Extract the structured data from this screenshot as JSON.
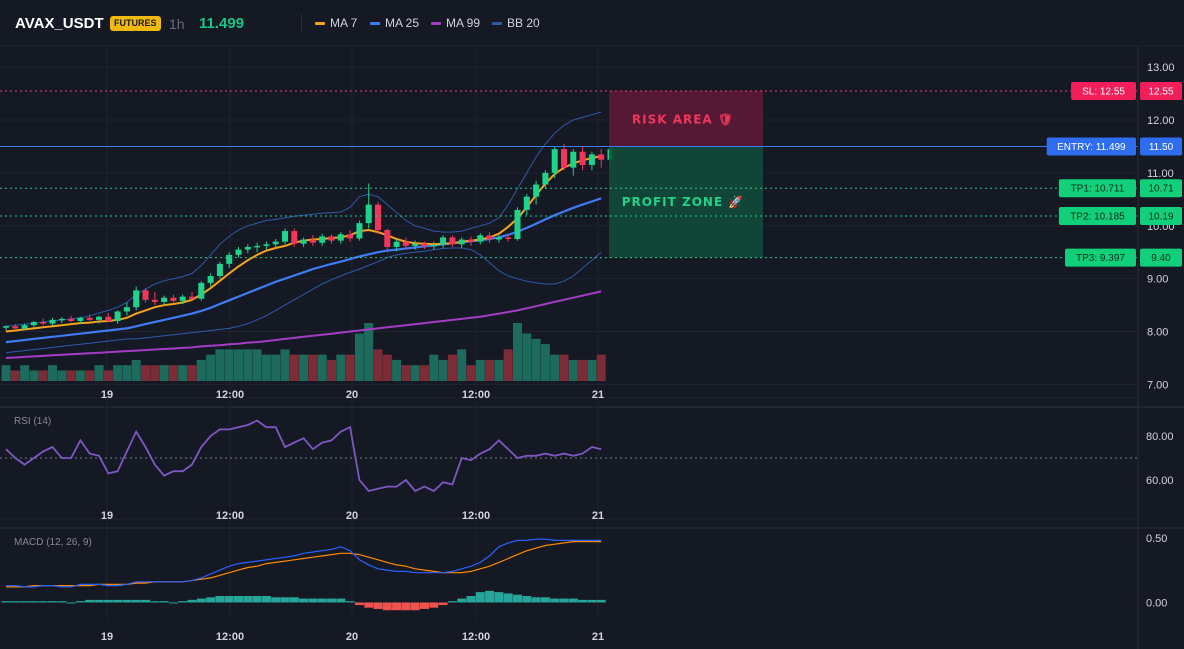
{
  "header": {
    "symbol": "AVAX_USDT",
    "badge": "FUTURES",
    "timeframe": "1h",
    "last_price": "11.499",
    "legend": [
      {
        "label": "MA 7",
        "color": "#f7a21b"
      },
      {
        "label": "MA 25",
        "color": "#3d7cf5"
      },
      {
        "label": "MA 99",
        "color": "#a43cc4"
      },
      {
        "label": "BB 20",
        "color": "#2e5aa8"
      }
    ]
  },
  "colors": {
    "up": "#1fd38a",
    "down": "#f2365b",
    "vol_up": "#1c6b5c",
    "vol_down": "#7d2b37",
    "macd_hist_up": "#26a69a",
    "macd_hist_down": "#ef5350",
    "rsi": "#7e57c2",
    "macd_line": "#2962ff",
    "signal_line": "#ff8a00",
    "grid": "#1f2330"
  },
  "price_axis": {
    "ticks": [
      "13.00",
      "12.00",
      "11.00",
      "10.00",
      "9.00",
      "8.00",
      "7.00"
    ],
    "min": 6.8,
    "max": 13.4
  },
  "time_axis": {
    "labels": [
      "19",
      "12:00",
      "20",
      "12:00",
      "21"
    ]
  },
  "levels": {
    "sl": {
      "label": "SL: 12.55",
      "value_label": "12.55",
      "value": 12.55
    },
    "entry": {
      "label": "ENTRY: 11.499",
      "value_label": "11.50",
      "value": 11.5
    },
    "tp1": {
      "label": "TP1: 10.711",
      "value_label": "10.71",
      "value": 10.711
    },
    "tp2": {
      "label": "TP2: 10.185",
      "value_label": "10.19",
      "value": 10.185
    },
    "tp3": {
      "label": "TP3: 9.397",
      "value_label": "9.40",
      "value": 9.397
    }
  },
  "zones": {
    "risk_label": "RISK AREA 🛡",
    "profit_label": "PROFIT ZONE 🚀"
  },
  "rsi": {
    "title": "RSI (14)",
    "ticks": [
      "80.00",
      "60.00"
    ],
    "level": 70,
    "values": [
      74,
      70,
      67,
      70,
      73,
      75,
      70,
      70,
      78,
      72,
      71,
      63,
      64,
      73,
      82,
      75,
      67,
      62,
      64,
      64,
      67,
      75,
      80,
      83,
      83,
      84,
      85,
      87,
      84,
      84,
      75,
      77,
      79,
      74,
      77,
      78,
      82,
      84,
      60,
      55,
      56,
      57,
      57,
      60,
      55,
      57,
      55,
      59,
      58,
      70,
      69,
      72,
      74,
      78,
      74,
      70,
      71,
      71,
      72,
      71,
      72,
      71,
      72,
      75,
      74
    ]
  },
  "macd": {
    "title": "MACD (12, 26, 9)",
    "ticks": [
      "0.50",
      "0.00"
    ],
    "macd_line": [
      0.13,
      0.13,
      0.12,
      0.12,
      0.13,
      0.13,
      0.12,
      0.12,
      0.14,
      0.14,
      0.14,
      0.13,
      0.13,
      0.14,
      0.16,
      0.16,
      0.16,
      0.16,
      0.16,
      0.16,
      0.17,
      0.19,
      0.22,
      0.25,
      0.28,
      0.3,
      0.31,
      0.32,
      0.33,
      0.34,
      0.35,
      0.36,
      0.38,
      0.39,
      0.4,
      0.41,
      0.43,
      0.4,
      0.33,
      0.29,
      0.26,
      0.25,
      0.24,
      0.24,
      0.23,
      0.23,
      0.23,
      0.23,
      0.24,
      0.26,
      0.28,
      0.31,
      0.36,
      0.43,
      0.46,
      0.48,
      0.48,
      0.49,
      0.49,
      0.48,
      0.48,
      0.48,
      0.48,
      0.48,
      0.48
    ],
    "signal_line": [
      0.12,
      0.12,
      0.12,
      0.13,
      0.13,
      0.13,
      0.13,
      0.13,
      0.13,
      0.13,
      0.14,
      0.14,
      0.14,
      0.14,
      0.15,
      0.15,
      0.16,
      0.16,
      0.16,
      0.16,
      0.17,
      0.18,
      0.19,
      0.21,
      0.23,
      0.25,
      0.27,
      0.28,
      0.3,
      0.31,
      0.32,
      0.33,
      0.34,
      0.35,
      0.36,
      0.37,
      0.38,
      0.38,
      0.37,
      0.35,
      0.33,
      0.31,
      0.29,
      0.28,
      0.26,
      0.25,
      0.24,
      0.23,
      0.23,
      0.23,
      0.24,
      0.26,
      0.28,
      0.31,
      0.34,
      0.37,
      0.4,
      0.42,
      0.44,
      0.45,
      0.46,
      0.47,
      0.47,
      0.47,
      0.47
    ],
    "histogram": [
      0.01,
      0.01,
      0.01,
      0.01,
      0.01,
      0.01,
      0.01,
      0.0,
      0.01,
      0.02,
      0.02,
      0.02,
      0.02,
      0.02,
      0.02,
      0.02,
      0.01,
      0.01,
      0.0,
      0.01,
      0.02,
      0.03,
      0.04,
      0.05,
      0.05,
      0.05,
      0.05,
      0.05,
      0.05,
      0.04,
      0.04,
      0.04,
      0.03,
      0.03,
      0.03,
      0.03,
      0.03,
      0.01,
      -0.02,
      -0.04,
      -0.05,
      -0.06,
      -0.06,
      -0.06,
      -0.06,
      -0.05,
      -0.04,
      -0.02,
      0.01,
      0.03,
      0.05,
      0.08,
      0.09,
      0.08,
      0.07,
      0.06,
      0.05,
      0.04,
      0.04,
      0.03,
      0.03,
      0.03,
      0.02,
      0.02,
      0.02
    ]
  },
  "chart_data": {
    "type": "candlestick",
    "symbol": "AVAX_USDT",
    "interval": "1h",
    "candles": [
      {
        "o": 8.08,
        "h": 8.12,
        "l": 8.02,
        "c": 8.1
      },
      {
        "o": 8.1,
        "h": 8.14,
        "l": 8.05,
        "c": 8.06
      },
      {
        "o": 8.06,
        "h": 8.15,
        "l": 8.03,
        "c": 8.12
      },
      {
        "o": 8.12,
        "h": 8.2,
        "l": 8.08,
        "c": 8.18
      },
      {
        "o": 8.18,
        "h": 8.25,
        "l": 8.12,
        "c": 8.15
      },
      {
        "o": 8.15,
        "h": 8.26,
        "l": 8.12,
        "c": 8.22
      },
      {
        "o": 8.22,
        "h": 8.27,
        "l": 8.16,
        "c": 8.24
      },
      {
        "o": 8.24,
        "h": 8.3,
        "l": 8.18,
        "c": 8.2
      },
      {
        "o": 8.2,
        "h": 8.28,
        "l": 8.15,
        "c": 8.26
      },
      {
        "o": 8.26,
        "h": 8.32,
        "l": 8.2,
        "c": 8.22
      },
      {
        "o": 8.22,
        "h": 8.3,
        "l": 8.15,
        "c": 8.28
      },
      {
        "o": 8.28,
        "h": 8.35,
        "l": 8.18,
        "c": 8.2
      },
      {
        "o": 8.2,
        "h": 8.4,
        "l": 8.15,
        "c": 8.38
      },
      {
        "o": 8.38,
        "h": 8.55,
        "l": 8.3,
        "c": 8.46
      },
      {
        "o": 8.46,
        "h": 8.85,
        "l": 8.4,
        "c": 8.78
      },
      {
        "o": 8.78,
        "h": 8.82,
        "l": 8.55,
        "c": 8.6
      },
      {
        "o": 8.6,
        "h": 8.75,
        "l": 8.5,
        "c": 8.56
      },
      {
        "o": 8.56,
        "h": 8.68,
        "l": 8.5,
        "c": 8.64
      },
      {
        "o": 8.64,
        "h": 8.7,
        "l": 8.55,
        "c": 8.58
      },
      {
        "o": 8.58,
        "h": 8.7,
        "l": 8.52,
        "c": 8.66
      },
      {
        "o": 8.66,
        "h": 8.75,
        "l": 8.6,
        "c": 8.62
      },
      {
        "o": 8.62,
        "h": 8.95,
        "l": 8.58,
        "c": 8.92
      },
      {
        "o": 8.92,
        "h": 9.1,
        "l": 8.85,
        "c": 9.05
      },
      {
        "o": 9.05,
        "h": 9.32,
        "l": 9.0,
        "c": 9.28
      },
      {
        "o": 9.28,
        "h": 9.5,
        "l": 9.2,
        "c": 9.45
      },
      {
        "o": 9.45,
        "h": 9.6,
        "l": 9.4,
        "c": 9.55
      },
      {
        "o": 9.55,
        "h": 9.65,
        "l": 9.48,
        "c": 9.6
      },
      {
        "o": 9.6,
        "h": 9.68,
        "l": 9.5,
        "c": 9.62
      },
      {
        "o": 9.62,
        "h": 9.7,
        "l": 9.55,
        "c": 9.65
      },
      {
        "o": 9.65,
        "h": 9.75,
        "l": 9.6,
        "c": 9.7
      },
      {
        "o": 9.7,
        "h": 9.95,
        "l": 9.65,
        "c": 9.9
      },
      {
        "o": 9.9,
        "h": 9.95,
        "l": 9.6,
        "c": 9.66
      },
      {
        "o": 9.66,
        "h": 9.78,
        "l": 9.6,
        "c": 9.74
      },
      {
        "o": 9.74,
        "h": 9.82,
        "l": 9.62,
        "c": 9.68
      },
      {
        "o": 9.68,
        "h": 9.85,
        "l": 9.62,
        "c": 9.8
      },
      {
        "o": 9.8,
        "h": 9.84,
        "l": 9.66,
        "c": 9.72
      },
      {
        "o": 9.72,
        "h": 9.88,
        "l": 9.66,
        "c": 9.84
      },
      {
        "o": 9.84,
        "h": 9.92,
        "l": 9.7,
        "c": 9.76
      },
      {
        "o": 9.76,
        "h": 10.1,
        "l": 9.72,
        "c": 10.05
      },
      {
        "o": 10.05,
        "h": 10.8,
        "l": 9.95,
        "c": 10.4
      },
      {
        "o": 10.4,
        "h": 10.45,
        "l": 9.85,
        "c": 9.92
      },
      {
        "o": 9.92,
        "h": 9.95,
        "l": 9.5,
        "c": 9.6
      },
      {
        "o": 9.6,
        "h": 9.75,
        "l": 9.52,
        "c": 9.7
      },
      {
        "o": 9.7,
        "h": 9.78,
        "l": 9.55,
        "c": 9.62
      },
      {
        "o": 9.62,
        "h": 9.72,
        "l": 9.55,
        "c": 9.66
      },
      {
        "o": 9.66,
        "h": 9.7,
        "l": 9.56,
        "c": 9.62
      },
      {
        "o": 9.62,
        "h": 9.7,
        "l": 9.55,
        "c": 9.64
      },
      {
        "o": 9.64,
        "h": 9.82,
        "l": 9.58,
        "c": 9.78
      },
      {
        "o": 9.78,
        "h": 9.82,
        "l": 9.6,
        "c": 9.65
      },
      {
        "o": 9.65,
        "h": 9.78,
        "l": 9.58,
        "c": 9.74
      },
      {
        "o": 9.74,
        "h": 9.8,
        "l": 9.62,
        "c": 9.7
      },
      {
        "o": 9.7,
        "h": 9.86,
        "l": 9.65,
        "c": 9.82
      },
      {
        "o": 9.82,
        "h": 9.88,
        "l": 9.68,
        "c": 9.74
      },
      {
        "o": 9.74,
        "h": 9.82,
        "l": 9.68,
        "c": 9.78
      },
      {
        "o": 9.78,
        "h": 9.84,
        "l": 9.7,
        "c": 9.75
      },
      {
        "o": 9.75,
        "h": 10.35,
        "l": 9.72,
        "c": 10.3
      },
      {
        "o": 10.3,
        "h": 10.6,
        "l": 10.2,
        "c": 10.55
      },
      {
        "o": 10.55,
        "h": 10.85,
        "l": 10.4,
        "c": 10.78
      },
      {
        "o": 10.78,
        "h": 11.05,
        "l": 10.7,
        "c": 11.0
      },
      {
        "o": 11.0,
        "h": 11.5,
        "l": 10.9,
        "c": 11.45
      },
      {
        "o": 11.45,
        "h": 11.55,
        "l": 11.05,
        "c": 11.1
      },
      {
        "o": 11.1,
        "h": 11.45,
        "l": 10.95,
        "c": 11.4
      },
      {
        "o": 11.4,
        "h": 11.5,
        "l": 11.05,
        "c": 11.15
      },
      {
        "o": 11.15,
        "h": 11.4,
        "l": 11.05,
        "c": 11.35
      },
      {
        "o": 11.35,
        "h": 11.45,
        "l": 11.1,
        "c": 11.25
      },
      {
        "o": 11.25,
        "h": 11.5,
        "l": 11.15,
        "c": 11.45
      }
    ],
    "volume": [
      3,
      2,
      3,
      2,
      2,
      3,
      2,
      2,
      2,
      2,
      3,
      2,
      3,
      3,
      4,
      3,
      3,
      3,
      3,
      3,
      3,
      4,
      5,
      6,
      6,
      6,
      6,
      6,
      5,
      5,
      6,
      5,
      5,
      5,
      5,
      4,
      5,
      5,
      9,
      11,
      6,
      5,
      4,
      3,
      3,
      3,
      5,
      4,
      5,
      6,
      3,
      4,
      4,
      4,
      6,
      11,
      9,
      8,
      7,
      5,
      5,
      4,
      4,
      4,
      5
    ],
    "ma7": [
      8.0,
      8.02,
      8.04,
      8.06,
      8.08,
      8.1,
      8.12,
      8.14,
      8.16,
      8.17,
      8.19,
      8.2,
      8.22,
      8.26,
      8.34,
      8.4,
      8.46,
      8.5,
      8.52,
      8.55,
      8.6,
      8.7,
      8.82,
      8.96,
      9.1,
      9.23,
      9.35,
      9.45,
      9.53,
      9.58,
      9.62,
      9.68,
      9.72,
      9.74,
      9.75,
      9.77,
      9.78,
      9.82,
      9.9,
      9.92,
      9.88,
      9.82,
      9.75,
      9.7,
      9.67,
      9.66,
      9.65,
      9.66,
      9.67,
      9.7,
      9.72,
      9.74,
      9.78,
      9.85,
      9.98,
      10.14,
      10.35,
      10.58,
      10.8,
      10.98,
      11.1,
      11.18,
      11.24,
      11.28,
      11.32
    ],
    "ma25": [
      7.8,
      7.82,
      7.84,
      7.86,
      7.88,
      7.9,
      7.92,
      7.94,
      7.96,
      7.98,
      8.0,
      8.02,
      8.04,
      8.06,
      8.1,
      8.14,
      8.18,
      8.22,
      8.26,
      8.3,
      8.34,
      8.39,
      8.45,
      8.52,
      8.59,
      8.66,
      8.73,
      8.8,
      8.87,
      8.94,
      9.0,
      9.06,
      9.12,
      9.18,
      9.23,
      9.28,
      9.32,
      9.37,
      9.42,
      9.46,
      9.5,
      9.53,
      9.55,
      9.57,
      9.59,
      9.61,
      9.63,
      9.65,
      9.67,
      9.69,
      9.71,
      9.73,
      9.75,
      9.78,
      9.83,
      9.89,
      9.96,
      10.04,
      10.12,
      10.2,
      10.27,
      10.34,
      10.4,
      10.46,
      10.52
    ],
    "ma99": [
      7.5,
      7.51,
      7.52,
      7.53,
      7.54,
      7.55,
      7.56,
      7.57,
      7.58,
      7.59,
      7.6,
      7.61,
      7.62,
      7.63,
      7.64,
      7.65,
      7.66,
      7.67,
      7.68,
      7.69,
      7.7,
      7.72,
      7.73,
      7.74,
      7.76,
      7.77,
      7.79,
      7.8,
      7.82,
      7.84,
      7.86,
      7.88,
      7.9,
      7.92,
      7.94,
      7.96,
      7.98,
      8.0,
      8.02,
      8.04,
      8.06,
      8.08,
      8.1,
      8.12,
      8.14,
      8.16,
      8.18,
      8.2,
      8.22,
      8.24,
      8.26,
      8.28,
      8.31,
      8.34,
      8.37,
      8.4,
      8.44,
      8.48,
      8.52,
      8.56,
      8.6,
      8.64,
      8.68,
      8.72,
      8.76
    ],
    "bb_upper": [
      8.1,
      8.12,
      8.14,
      8.16,
      8.18,
      8.2,
      8.22,
      8.24,
      8.26,
      8.3,
      8.35,
      8.4,
      8.46,
      8.55,
      8.7,
      8.8,
      8.9,
      8.96,
      9.0,
      9.04,
      9.1,
      9.25,
      9.45,
      9.65,
      9.8,
      9.92,
      10.0,
      10.05,
      10.1,
      10.12,
      10.15,
      10.18,
      10.2,
      10.22,
      10.24,
      10.25,
      10.26,
      10.35,
      10.55,
      10.6,
      10.55,
      10.4,
      10.25,
      10.1,
      10.0,
      9.95,
      9.9,
      9.88,
      9.88,
      9.9,
      9.95,
      10.0,
      10.05,
      10.15,
      10.4,
      10.7,
      11.0,
      11.3,
      11.55,
      11.75,
      11.9,
      12.0,
      12.05,
      12.1,
      12.15
    ],
    "bb_lower": [
      7.6,
      7.62,
      7.64,
      7.66,
      7.68,
      7.7,
      7.72,
      7.74,
      7.76,
      7.78,
      7.8,
      7.82,
      7.84,
      7.86,
      7.86,
      7.88,
      7.9,
      7.92,
      7.94,
      7.96,
      7.98,
      8.0,
      8.02,
      8.04,
      8.06,
      8.1,
      8.15,
      8.22,
      8.3,
      8.4,
      8.5,
      8.6,
      8.7,
      8.8,
      8.9,
      8.98,
      9.05,
      9.12,
      9.18,
      9.25,
      9.32,
      9.4,
      9.45,
      9.48,
      9.5,
      9.52,
      9.55,
      9.57,
      9.58,
      9.58,
      9.55,
      9.45,
      9.3,
      9.15,
      9.05,
      9.0,
      8.95,
      8.92,
      8.9,
      8.9,
      8.95,
      9.05,
      9.2,
      9.35,
      9.5
    ]
  }
}
